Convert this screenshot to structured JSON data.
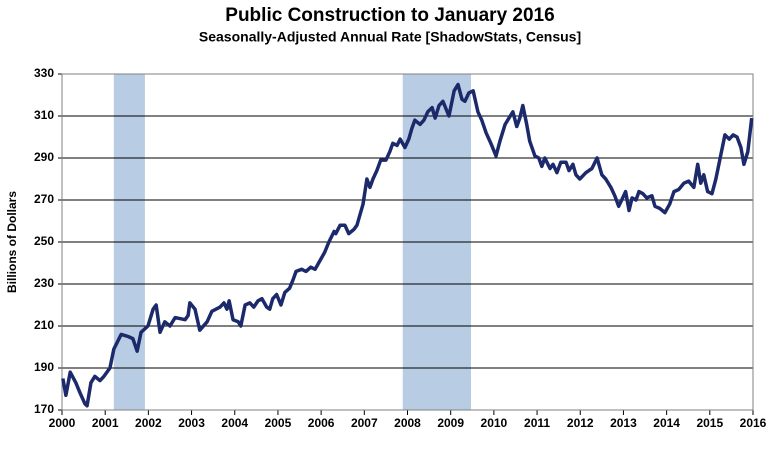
{
  "chart_data": {
    "type": "line",
    "title": "Public Construction to January 2016",
    "subtitle": "Seasonally-Adjusted Annual Rate [ShadowStats, Census]",
    "y_label": "Billions  of Dollars",
    "color": "#1c2a6b",
    "shade_color": "#b8cce4",
    "recessions": [
      [
        2001.2,
        2001.92
      ],
      [
        2007.89,
        2009.47
      ]
    ],
    "xlim": [
      2000,
      2016
    ],
    "xticks": [
      2000,
      2001,
      2002,
      2003,
      2004,
      2005,
      2006,
      2007,
      2008,
      2009,
      2010,
      2011,
      2012,
      2013,
      2014,
      2015,
      2016
    ],
    "ylim": [
      170,
      330
    ],
    "yticks": [
      170,
      190,
      210,
      230,
      250,
      270,
      290,
      310,
      330
    ],
    "grid": true,
    "x": [
      2000.02,
      2000.09,
      2000.19,
      2000.32,
      2000.42,
      2000.53,
      2000.58,
      2000.67,
      2000.76,
      2000.88,
      2000.97,
      2001.11,
      2001.2,
      2001.37,
      2001.53,
      2001.64,
      2001.74,
      2001.83,
      2001.99,
      2002.11,
      2002.18,
      2002.27,
      2002.38,
      2002.5,
      2002.62,
      2002.85,
      2002.92,
      2002.96,
      2003.08,
      2003.19,
      2003.36,
      2003.47,
      2003.66,
      2003.75,
      2003.82,
      2003.87,
      2003.96,
      2004.08,
      2004.14,
      2004.24,
      2004.35,
      2004.44,
      2004.54,
      2004.63,
      2004.74,
      2004.81,
      2004.88,
      2004.97,
      2005.07,
      2005.16,
      2005.27,
      2005.35,
      2005.42,
      2005.55,
      2005.65,
      2005.76,
      2005.86,
      2005.97,
      2006.08,
      2006.18,
      2006.3,
      2006.34,
      2006.44,
      2006.55,
      2006.64,
      2006.76,
      2006.83,
      2006.97,
      2007.06,
      2007.13,
      2007.2,
      2007.29,
      2007.38,
      2007.5,
      2007.59,
      2007.66,
      2007.76,
      2007.83,
      2007.94,
      2008.03,
      2008.1,
      2008.17,
      2008.29,
      2008.38,
      2008.47,
      2008.57,
      2008.64,
      2008.73,
      2008.82,
      2008.96,
      2009.08,
      2009.17,
      2009.26,
      2009.33,
      2009.42,
      2009.52,
      2009.63,
      2009.72,
      2009.82,
      2009.93,
      2010.05,
      2010.14,
      2010.26,
      2010.35,
      2010.44,
      2010.53,
      2010.6,
      2010.67,
      2010.76,
      2010.83,
      2010.95,
      2011.04,
      2011.11,
      2011.18,
      2011.3,
      2011.37,
      2011.46,
      2011.55,
      2011.67,
      2011.74,
      2011.83,
      2011.9,
      2011.99,
      2012.13,
      2012.27,
      2012.39,
      2012.5,
      2012.59,
      2012.71,
      2012.8,
      2012.89,
      2012.96,
      2013.05,
      2013.13,
      2013.2,
      2013.29,
      2013.36,
      2013.45,
      2013.54,
      2013.66,
      2013.73,
      2013.84,
      2013.96,
      2014.07,
      2014.17,
      2014.28,
      2014.4,
      2014.51,
      2014.63,
      2014.72,
      2014.79,
      2014.86,
      2014.95,
      2015.05,
      2015.14,
      2015.26,
      2015.35,
      2015.45,
      2015.54,
      2015.63,
      2015.72,
      2015.79,
      2015.88,
      2015.97
    ],
    "values": [
      185,
      177,
      188,
      183,
      178,
      173,
      172,
      183,
      186,
      184,
      186,
      190,
      199,
      206,
      205,
      204,
      198,
      207,
      210,
      218,
      220,
      207,
      212,
      210,
      214,
      213,
      215,
      221,
      218,
      208,
      212,
      217,
      219,
      221,
      218,
      222,
      213,
      212,
      210,
      220,
      221,
      219,
      222,
      223,
      219,
      218,
      223,
      225,
      220,
      226,
      228,
      232,
      236,
      237,
      236,
      238,
      237,
      241,
      245,
      250,
      255,
      254,
      258,
      258,
      254,
      256,
      258,
      268,
      280,
      276,
      280,
      284,
      289,
      289,
      293,
      297,
      296,
      299,
      295,
      299,
      304,
      308,
      306,
      308,
      312,
      314,
      309,
      315,
      317,
      310,
      322,
      325,
      318,
      317,
      321,
      322,
      312,
      308,
      302,
      297,
      291,
      298,
      306,
      309,
      312,
      305,
      309,
      315,
      306,
      298,
      291,
      290,
      286,
      290,
      285,
      287,
      283,
      288,
      288,
      284,
      287,
      282,
      280,
      283,
      285,
      290,
      282,
      280,
      276,
      272,
      267,
      270,
      274,
      265,
      271,
      270,
      274,
      273,
      271,
      272,
      267,
      266,
      264,
      268,
      274,
      275,
      278,
      279,
      276,
      287,
      278,
      282,
      274,
      273,
      280,
      292,
      301,
      299,
      301,
      300,
      295,
      287,
      293,
      309
    ]
  }
}
